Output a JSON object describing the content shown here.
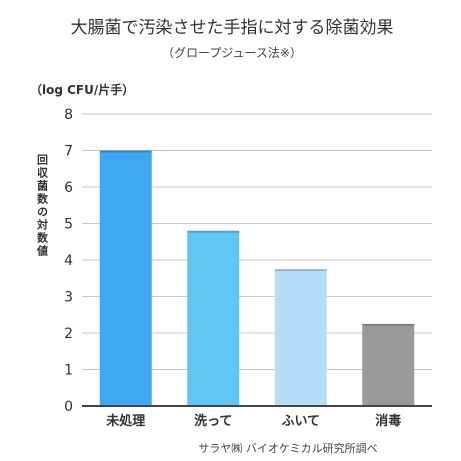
{
  "chart_data": {
    "type": "bar",
    "title": "大腸菌で汚染させた手指に対する除菌効果",
    "subtitle": "（グロープジュース法※）",
    "ylabel": "回収菌数の対数値",
    "yunit": "（log CFU/片手）",
    "categories": [
      "未処理",
      "洗って",
      "ふいて",
      "消毒"
    ],
    "values": [
      7.0,
      4.8,
      3.75,
      2.25
    ],
    "colors": [
      "#3ea8f2",
      "#62c6f4",
      "#b5ddf5",
      "#9a9a9a"
    ],
    "ylim": [
      0,
      8
    ],
    "yticks": [
      "0",
      "1",
      "2",
      "3",
      "4",
      "5",
      "6",
      "7",
      "8"
    ],
    "grid": true,
    "source": "サラヤ㈱ バイオケミカル研究所調べ"
  }
}
